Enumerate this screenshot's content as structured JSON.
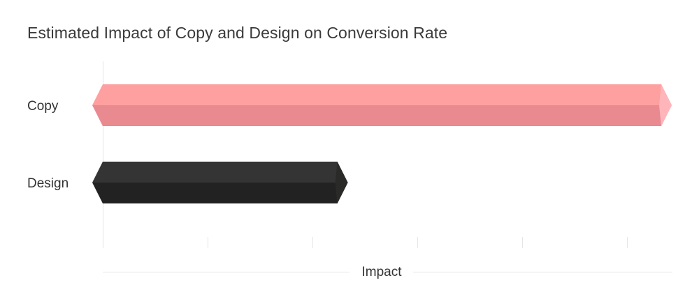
{
  "chart_data": {
    "type": "bar",
    "orientation": "horizontal",
    "title": "Estimated Impact of Copy and Design on Conversion Rate",
    "xlabel": "Impact",
    "ylabel": "",
    "categories": [
      "Copy",
      "Design"
    ],
    "values": [
      100,
      42
    ],
    "xlim": [
      0,
      100
    ],
    "grid": false,
    "colors": {
      "Copy": {
        "top": "#fea0a0",
        "bottom": "#e98a91",
        "cap": "#ffb5b9"
      },
      "Design": {
        "top": "#343434",
        "bottom": "#222222",
        "cap": "#2a2a28"
      }
    },
    "axis_color": "#e6e6e6"
  }
}
